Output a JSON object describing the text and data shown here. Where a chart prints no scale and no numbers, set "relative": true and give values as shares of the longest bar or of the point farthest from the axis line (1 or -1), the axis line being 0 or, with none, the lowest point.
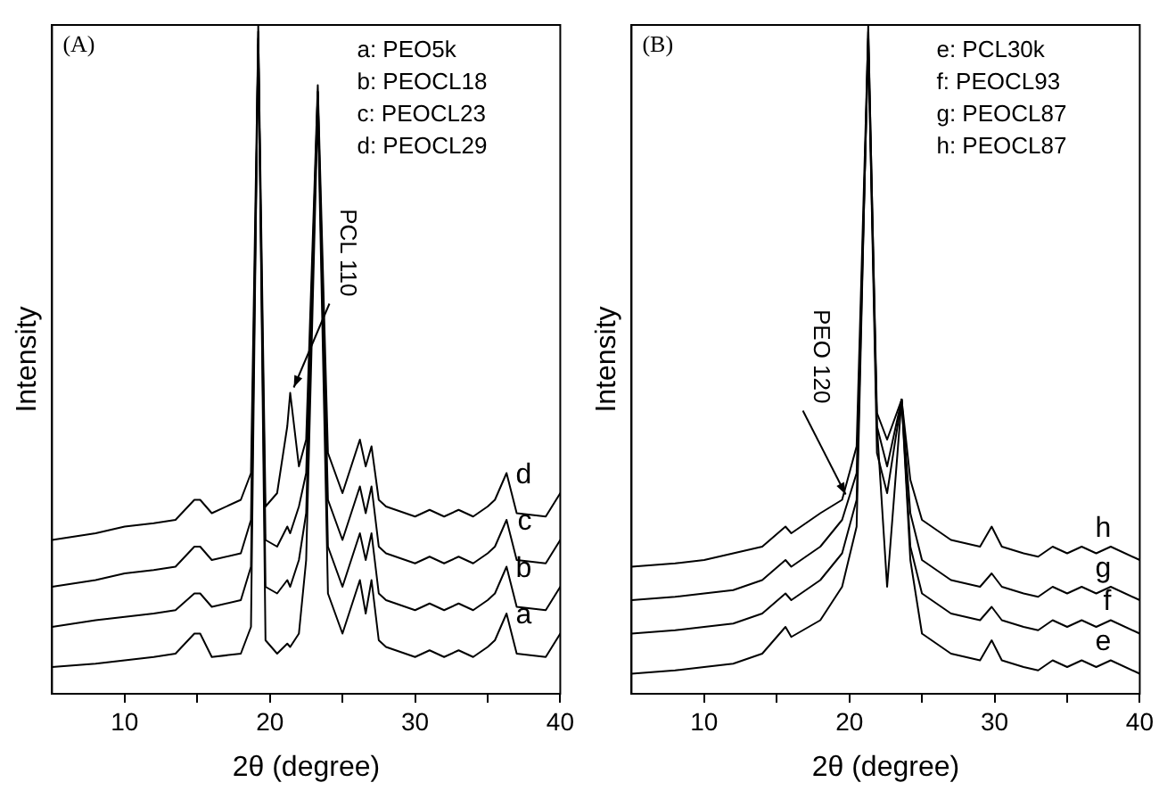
{
  "chart_data": [
    {
      "type": "line",
      "title": "(A)",
      "xlabel": "2θ (degree)",
      "ylabel": "Intensity",
      "relative": true,
      "xlim": [
        5,
        40
      ],
      "xticks": [
        10,
        {
          "value": 15,
          "label": null
        },
        20,
        {
          "value": 25,
          "label": null
        },
        30,
        {
          "value": 35,
          "label": null
        },
        40
      ],
      "grid": false,
      "legend": false,
      "x": [
        5,
        8,
        10,
        12,
        13.5,
        14.8,
        15.2,
        16,
        18,
        18.7,
        19.2,
        19.7,
        20.5,
        21.2,
        21.4,
        22,
        22.5,
        23.3,
        24,
        25,
        26.2,
        26.6,
        27,
        27.5,
        28,
        30,
        31,
        32,
        33,
        34,
        35,
        35.5,
        36.3,
        37,
        39,
        40
      ],
      "series": [
        {
          "name": "a",
          "color": "#000000",
          "values": [
            0.04,
            0.045,
            0.05,
            0.055,
            0.06,
            0.09,
            0.09,
            0.055,
            0.06,
            0.1,
            1.0,
            0.08,
            0.06,
            0.075,
            0.07,
            0.09,
            0.2,
            0.88,
            0.15,
            0.09,
            0.17,
            0.12,
            0.17,
            0.08,
            0.07,
            0.055,
            0.065,
            0.055,
            0.065,
            0.055,
            0.07,
            0.08,
            0.12,
            0.06,
            0.055,
            0.09
          ]
        },
        {
          "name": "b",
          "color": "#000000",
          "values": [
            0.1,
            0.11,
            0.115,
            0.12,
            0.125,
            0.15,
            0.15,
            0.13,
            0.14,
            0.19,
            0.98,
            0.16,
            0.15,
            0.17,
            0.16,
            0.2,
            0.27,
            0.9,
            0.22,
            0.16,
            0.24,
            0.2,
            0.24,
            0.15,
            0.14,
            0.125,
            0.135,
            0.125,
            0.135,
            0.125,
            0.14,
            0.15,
            0.19,
            0.13,
            0.125,
            0.16
          ]
        },
        {
          "name": "c",
          "color": "#000000",
          "values": [
            0.16,
            0.17,
            0.18,
            0.185,
            0.19,
            0.22,
            0.22,
            0.2,
            0.21,
            0.26,
            0.97,
            0.23,
            0.22,
            0.25,
            0.24,
            0.28,
            0.33,
            0.9,
            0.29,
            0.23,
            0.31,
            0.27,
            0.31,
            0.22,
            0.21,
            0.195,
            0.205,
            0.195,
            0.205,
            0.195,
            0.21,
            0.22,
            0.26,
            0.2,
            0.195,
            0.23
          ]
        },
        {
          "name": "d",
          "color": "#000000",
          "values": [
            0.23,
            0.24,
            0.25,
            0.255,
            0.26,
            0.29,
            0.29,
            0.27,
            0.29,
            0.33,
            0.99,
            0.28,
            0.3,
            0.4,
            0.45,
            0.34,
            0.38,
            0.91,
            0.36,
            0.3,
            0.38,
            0.34,
            0.37,
            0.29,
            0.28,
            0.265,
            0.275,
            0.265,
            0.275,
            0.265,
            0.28,
            0.29,
            0.33,
            0.27,
            0.265,
            0.3
          ]
        }
      ],
      "annotations": [
        "a: PEO5k",
        "b: PEOCL18",
        "c: PEOCL23",
        "d: PEOCL29",
        {
          "text": "PCL 110",
          "x": 21.4,
          "y": 0.45
        }
      ]
    },
    {
      "type": "line",
      "title": "(B)",
      "xlabel": "2θ (degree)",
      "ylabel": "Intensity",
      "relative": true,
      "xlim": [
        5,
        40
      ],
      "xticks": [
        10,
        {
          "value": 15,
          "label": null
        },
        20,
        {
          "value": 25,
          "label": null
        },
        30,
        {
          "value": 35,
          "label": null
        },
        40
      ],
      "grid": false,
      "legend": false,
      "x": [
        5,
        8,
        10,
        12,
        14,
        15.6,
        16,
        18,
        19.5,
        20.5,
        21.3,
        21.9,
        22.6,
        23.6,
        24.2,
        25,
        27,
        29,
        29.8,
        30.5,
        32,
        33,
        34,
        35,
        36,
        37,
        38,
        40
      ],
      "series": [
        {
          "name": "e",
          "color": "#000000",
          "values": [
            0.03,
            0.035,
            0.04,
            0.045,
            0.06,
            0.1,
            0.085,
            0.11,
            0.16,
            0.25,
            1.0,
            0.4,
            0.16,
            0.44,
            0.2,
            0.09,
            0.06,
            0.05,
            0.08,
            0.05,
            0.04,
            0.035,
            0.05,
            0.04,
            0.05,
            0.04,
            0.05,
            0.03
          ]
        },
        {
          "name": "f",
          "color": "#000000",
          "values": [
            0.09,
            0.095,
            0.1,
            0.105,
            0.12,
            0.15,
            0.14,
            0.17,
            0.21,
            0.29,
            0.98,
            0.36,
            0.3,
            0.44,
            0.22,
            0.15,
            0.12,
            0.11,
            0.13,
            0.11,
            0.1,
            0.095,
            0.11,
            0.1,
            0.11,
            0.1,
            0.11,
            0.09
          ]
        },
        {
          "name": "g",
          "color": "#000000",
          "values": [
            0.14,
            0.145,
            0.15,
            0.155,
            0.17,
            0.2,
            0.19,
            0.22,
            0.26,
            0.33,
            0.97,
            0.4,
            0.34,
            0.44,
            0.27,
            0.2,
            0.17,
            0.16,
            0.18,
            0.16,
            0.15,
            0.145,
            0.16,
            0.15,
            0.16,
            0.15,
            0.16,
            0.14
          ]
        },
        {
          "name": "h",
          "color": "#000000",
          "values": [
            0.19,
            0.195,
            0.2,
            0.21,
            0.22,
            0.25,
            0.24,
            0.27,
            0.29,
            0.37,
            0.99,
            0.42,
            0.38,
            0.44,
            0.32,
            0.26,
            0.23,
            0.22,
            0.25,
            0.22,
            0.21,
            0.205,
            0.22,
            0.21,
            0.22,
            0.21,
            0.22,
            0.2
          ]
        }
      ],
      "annotations": [
        "e: PCL30k",
        "f: PEOCL93",
        "g: PEOCL87",
        "h: PEOCL87",
        {
          "text": "PEO 120",
          "x": 19.5,
          "y": 0.29
        }
      ]
    }
  ]
}
